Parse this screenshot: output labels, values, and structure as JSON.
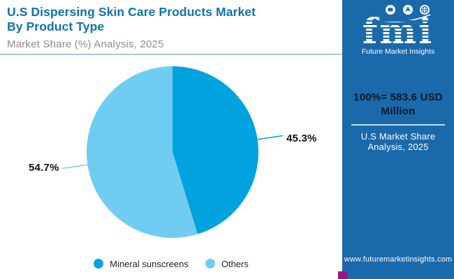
{
  "header": {
    "title_line1": "U.S Dispersing Skin Care Products Market",
    "title_line2": "By Product Type",
    "subtitle": "Market Share (%) Analysis, 2025"
  },
  "chart_data": {
    "type": "pie",
    "title": "U.S Dispersing Skin Care Products Market By Product Type",
    "subtitle": "Market Share (%) Analysis, 2025",
    "unit": "percent",
    "total_note": "100%= 583.6 USD Million",
    "start_angle_deg": 0,
    "direction": "clockwise",
    "legend_position": "bottom",
    "slices": [
      {
        "label": "Mineral sunscreens",
        "value": 45.3,
        "display": "45.3%",
        "color": "#00a3dd"
      },
      {
        "label": "Others",
        "value": 54.7,
        "display": "54.7%",
        "color": "#70cdf1"
      }
    ]
  },
  "sidebar": {
    "logo_text": "fmi",
    "logo_caption": "Future Market Insights",
    "total_line1": "100%= 583.6 USD",
    "total_line2": "Million",
    "analysis_line1": "U.S Market Share",
    "analysis_line2": "Analysis, 2025",
    "website": "www.futuremarketinsights.com"
  },
  "colors": {
    "title": "#0e74ad",
    "subtitle": "#8c8c8c",
    "header_divider": "#a9c6d8",
    "sidebar_bg": "#1a69ab",
    "sidebar_divider": "#c3dcee",
    "sidebar_total_text": "#0d1826",
    "accent_square": "#9c1585",
    "value_label_text": "#111111",
    "legend_text": "#222222"
  }
}
